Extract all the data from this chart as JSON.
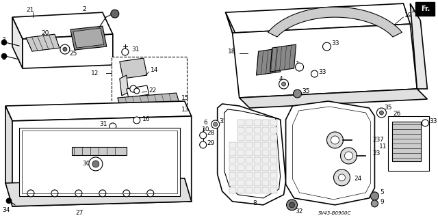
{
  "bg_color": "#ffffff",
  "line_color": "#000000",
  "gray_color": "#aaaaaa",
  "dark_gray": "#555555",
  "watermark": "SV43-B0900C",
  "fr_label": "Fr.",
  "label_fontsize": 6.5,
  "small_fontsize": 5.5
}
